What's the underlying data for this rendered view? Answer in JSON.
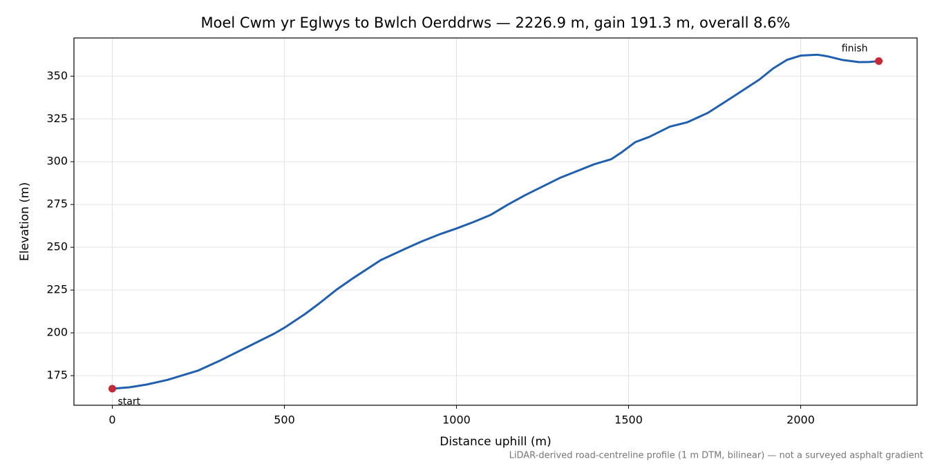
{
  "chart_data": {
    "type": "line",
    "title": "Moel Cwm yr Eglwys to Bwlch Oerddrws — 2226.9 m, gain 191.3 m, overall 8.6%",
    "x_label": "Distance uphill (m)",
    "y_label": "Elevation (m)",
    "footnote": "LiDAR-derived road-centreline profile (1 m DTM, bilinear) — not a surveyed asphalt gradient",
    "x": [
      0,
      50,
      100,
      160,
      250,
      310,
      400,
      470,
      500,
      560,
      600,
      650,
      700,
      780,
      850,
      900,
      950,
      1000,
      1050,
      1100,
      1150,
      1200,
      1250,
      1300,
      1350,
      1400,
      1450,
      1480,
      1520,
      1560,
      1620,
      1670,
      1730,
      1800,
      1880,
      1920,
      1960,
      2000,
      2050,
      2080,
      2120,
      2170,
      2200,
      2226.9
    ],
    "series": [
      {
        "color": "#1f5fad",
        "values": [
          167.4,
          168.2,
          169.8,
          172.5,
          178,
          183.5,
          192.5,
          199.5,
          203,
          211,
          217,
          225,
          232,
          242.5,
          249,
          253.5,
          257.5,
          261,
          264.8,
          269,
          275,
          280.5,
          285.5,
          290.5,
          294.5,
          298.5,
          301.5,
          305.5,
          311.5,
          314.5,
          320.5,
          323,
          328.5,
          337.5,
          348,
          354.5,
          359.5,
          362,
          362.5,
          361.5,
          359.5,
          358.2,
          358.3,
          358.8
        ]
      }
    ],
    "markers": {
      "color": "#c62834",
      "x": [
        0,
        2226.9
      ],
      "values": [
        167.4,
        358.8
      ],
      "labels": [
        "start",
        "finish"
      ]
    },
    "xlim": [
      -111.35,
      2338.25
    ],
    "xticks": [
      0,
      500,
      1000,
      1500,
      2000
    ],
    "ylim": [
      157.7,
      372.3
    ],
    "yticks": [
      175,
      200,
      225,
      250,
      275,
      300,
      325,
      350
    ],
    "grid": true
  }
}
